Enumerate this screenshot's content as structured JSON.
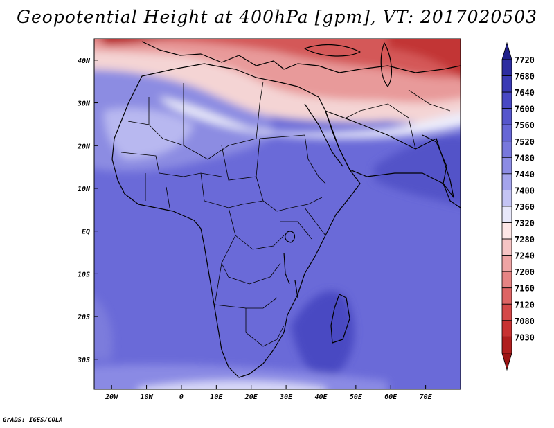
{
  "title": "Geopotential Height at 400hPa [gpm], VT: 2017020503",
  "footer": "GrADS: IGES/COLA",
  "map": {
    "lon_range": [
      -25,
      80
    ],
    "lat_range": [
      -37,
      45
    ],
    "lon_ticks": [
      {
        "lon": -20,
        "label": "20W"
      },
      {
        "lon": -10,
        "label": "10W"
      },
      {
        "lon": 0,
        "label": "0"
      },
      {
        "lon": 10,
        "label": "10E"
      },
      {
        "lon": 20,
        "label": "20E"
      },
      {
        "lon": 30,
        "label": "30E"
      },
      {
        "lon": 40,
        "label": "40E"
      },
      {
        "lon": 50,
        "label": "50E"
      },
      {
        "lon": 60,
        "label": "60E"
      },
      {
        "lon": 70,
        "label": "70E"
      }
    ],
    "lat_ticks": [
      {
        "lat": 40,
        "label": "40N"
      },
      {
        "lat": 30,
        "label": "30N"
      },
      {
        "lat": 20,
        "label": "20N"
      },
      {
        "lat": 10,
        "label": "10N"
      },
      {
        "lat": 0,
        "label": "EQ"
      },
      {
        "lat": -10,
        "label": "10S"
      },
      {
        "lat": -20,
        "label": "20S"
      },
      {
        "lat": -30,
        "label": "30S"
      }
    ]
  },
  "colorbar": {
    "labels": [
      "7720",
      "7680",
      "7640",
      "7600",
      "7560",
      "7520",
      "7480",
      "7440",
      "7400",
      "7360",
      "7320",
      "7280",
      "7240",
      "7200",
      "7160",
      "7120",
      "7080",
      "7030"
    ],
    "colors": [
      "#2c2ca0",
      "#3a3ab4",
      "#4848c4",
      "#5656cc",
      "#6666d6",
      "#7878dc",
      "#8c8ce4",
      "#a4a4ec",
      "#c4c4f4",
      "#e8e8fa",
      "#fde6e6",
      "#f6c4c4",
      "#eea4a4",
      "#e68484",
      "#de6464",
      "#d44848",
      "#c83232",
      "#b01e1e"
    ],
    "top_color": "#20208a",
    "bottom_color": "#9c1414"
  }
}
